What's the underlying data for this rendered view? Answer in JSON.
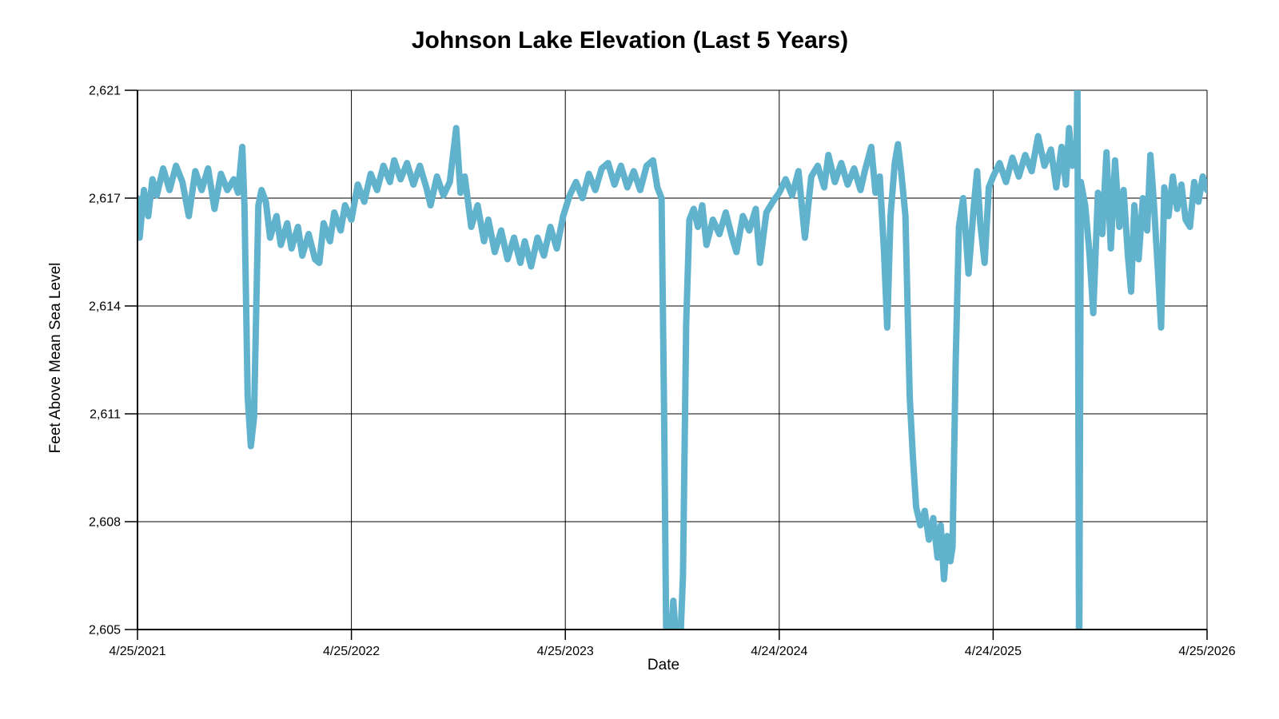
{
  "title": "Johnson Lake Elevation (Last 5 Years)",
  "chart_data": {
    "type": "line",
    "title": "Johnson Lake Elevation (Last 5 Years)",
    "xlabel": "Date",
    "ylabel": "Feet Above Mean Sea Level",
    "grid": true,
    "legend": "none",
    "line_color": "#61B3CD",
    "x_tick_labels": [
      "4/25/2021",
      "4/25/2022",
      "4/25/2023",
      "4/24/2024",
      "4/24/2025",
      "4/25/2026"
    ],
    "y_tick_labels": [
      "2,621",
      "2,617",
      "2,614",
      "2,611",
      "2,608",
      "2,605"
    ],
    "y_tick_values": [
      2621,
      2617,
      2614,
      2611,
      2608,
      2605
    ],
    "x_range_years": [
      0,
      5
    ],
    "points": [
      [
        0.0,
        2617.0
      ],
      [
        0.01,
        2615.9
      ],
      [
        0.03,
        2617.3
      ],
      [
        0.05,
        2616.5
      ],
      [
        0.07,
        2617.7
      ],
      [
        0.09,
        2617.1
      ],
      [
        0.12,
        2618.1
      ],
      [
        0.15,
        2617.3
      ],
      [
        0.18,
        2618.2
      ],
      [
        0.21,
        2617.6
      ],
      [
        0.24,
        2616.5
      ],
      [
        0.27,
        2618.0
      ],
      [
        0.3,
        2617.3
      ],
      [
        0.33,
        2618.1
      ],
      [
        0.36,
        2616.7
      ],
      [
        0.39,
        2617.9
      ],
      [
        0.42,
        2617.3
      ],
      [
        0.45,
        2617.7
      ],
      [
        0.47,
        2617.2
      ],
      [
        0.49,
        2618.9
      ],
      [
        0.5,
        2616.8
      ],
      [
        0.515,
        2611.5
      ],
      [
        0.53,
        2610.1
      ],
      [
        0.545,
        2610.9
      ],
      [
        0.565,
        2616.8
      ],
      [
        0.58,
        2617.3
      ],
      [
        0.6,
        2616.9
      ],
      [
        0.62,
        2615.9
      ],
      [
        0.65,
        2616.5
      ],
      [
        0.67,
        2615.7
      ],
      [
        0.7,
        2616.3
      ],
      [
        0.72,
        2615.6
      ],
      [
        0.75,
        2616.2
      ],
      [
        0.77,
        2615.4
      ],
      [
        0.8,
        2616.0
      ],
      [
        0.83,
        2615.3
      ],
      [
        0.85,
        2615.2
      ],
      [
        0.87,
        2616.3
      ],
      [
        0.9,
        2615.8
      ],
      [
        0.92,
        2616.6
      ],
      [
        0.95,
        2616.1
      ],
      [
        0.97,
        2616.8
      ],
      [
        1.0,
        2616.4
      ],
      [
        1.03,
        2617.5
      ],
      [
        1.06,
        2616.9
      ],
      [
        1.09,
        2617.9
      ],
      [
        1.12,
        2617.3
      ],
      [
        1.15,
        2618.2
      ],
      [
        1.18,
        2617.6
      ],
      [
        1.2,
        2618.4
      ],
      [
        1.23,
        2617.7
      ],
      [
        1.26,
        2618.3
      ],
      [
        1.29,
        2617.5
      ],
      [
        1.32,
        2618.2
      ],
      [
        1.35,
        2617.4
      ],
      [
        1.37,
        2616.8
      ],
      [
        1.4,
        2617.8
      ],
      [
        1.43,
        2617.1
      ],
      [
        1.46,
        2617.6
      ],
      [
        1.49,
        2619.6
      ],
      [
        1.51,
        2617.2
      ],
      [
        1.53,
        2617.8
      ],
      [
        1.56,
        2616.2
      ],
      [
        1.59,
        2616.8
      ],
      [
        1.62,
        2615.8
      ],
      [
        1.64,
        2616.4
      ],
      [
        1.67,
        2615.5
      ],
      [
        1.7,
        2616.1
      ],
      [
        1.73,
        2615.3
      ],
      [
        1.76,
        2615.9
      ],
      [
        1.79,
        2615.2
      ],
      [
        1.81,
        2615.8
      ],
      [
        1.84,
        2615.1
      ],
      [
        1.87,
        2615.9
      ],
      [
        1.9,
        2615.4
      ],
      [
        1.93,
        2616.2
      ],
      [
        1.96,
        2615.6
      ],
      [
        1.99,
        2616.5
      ],
      [
        2.02,
        2617.1
      ],
      [
        2.05,
        2617.6
      ],
      [
        2.08,
        2617.0
      ],
      [
        2.11,
        2617.9
      ],
      [
        2.14,
        2617.3
      ],
      [
        2.17,
        2618.1
      ],
      [
        2.2,
        2618.3
      ],
      [
        2.23,
        2617.5
      ],
      [
        2.26,
        2618.2
      ],
      [
        2.29,
        2617.4
      ],
      [
        2.32,
        2618.0
      ],
      [
        2.35,
        2617.3
      ],
      [
        2.38,
        2618.2
      ],
      [
        2.41,
        2618.4
      ],
      [
        2.43,
        2617.4
      ],
      [
        2.45,
        2617.0
      ],
      [
        2.462,
        2611.0
      ],
      [
        2.472,
        2604.6
      ],
      [
        2.49,
        2604.4
      ],
      [
        2.505,
        2605.8
      ],
      [
        2.52,
        2604.5
      ],
      [
        2.535,
        2604.3
      ],
      [
        2.55,
        2606.5
      ],
      [
        2.565,
        2613.5
      ],
      [
        2.58,
        2616.4
      ],
      [
        2.6,
        2616.7
      ],
      [
        2.62,
        2616.2
      ],
      [
        2.64,
        2616.8
      ],
      [
        2.66,
        2615.7
      ],
      [
        2.69,
        2616.4
      ],
      [
        2.72,
        2616.0
      ],
      [
        2.75,
        2616.6
      ],
      [
        2.78,
        2615.9
      ],
      [
        2.8,
        2615.5
      ],
      [
        2.83,
        2616.5
      ],
      [
        2.86,
        2616.1
      ],
      [
        2.89,
        2616.7
      ],
      [
        2.91,
        2615.2
      ],
      [
        2.94,
        2616.6
      ],
      [
        2.97,
        2616.9
      ],
      [
        3.0,
        2617.2
      ],
      [
        3.03,
        2617.7
      ],
      [
        3.06,
        2617.1
      ],
      [
        3.09,
        2618.0
      ],
      [
        3.12,
        2615.9
      ],
      [
        3.15,
        2617.8
      ],
      [
        3.18,
        2618.2
      ],
      [
        3.21,
        2617.4
      ],
      [
        3.23,
        2618.6
      ],
      [
        3.26,
        2617.6
      ],
      [
        3.29,
        2618.3
      ],
      [
        3.32,
        2617.5
      ],
      [
        3.35,
        2618.1
      ],
      [
        3.38,
        2617.3
      ],
      [
        3.4,
        2618.0
      ],
      [
        3.43,
        2618.9
      ],
      [
        3.45,
        2617.2
      ],
      [
        3.47,
        2617.8
      ],
      [
        3.49,
        2615.5
      ],
      [
        3.505,
        2613.4
      ],
      [
        3.52,
        2616.5
      ],
      [
        3.54,
        2618.3
      ],
      [
        3.555,
        2619.0
      ],
      [
        3.57,
        2618.0
      ],
      [
        3.59,
        2616.5
      ],
      [
        3.61,
        2611.5
      ],
      [
        3.625,
        2609.8
      ],
      [
        3.64,
        2608.4
      ],
      [
        3.66,
        2607.9
      ],
      [
        3.68,
        2608.3
      ],
      [
        3.7,
        2607.5
      ],
      [
        3.72,
        2608.1
      ],
      [
        3.74,
        2607.0
      ],
      [
        3.755,
        2607.9
      ],
      [
        3.77,
        2606.4
      ],
      [
        3.785,
        2607.6
      ],
      [
        3.8,
        2606.9
      ],
      [
        3.81,
        2607.3
      ],
      [
        3.825,
        2612.5
      ],
      [
        3.84,
        2616.2
      ],
      [
        3.86,
        2617.0
      ],
      [
        3.885,
        2614.9
      ],
      [
        3.91,
        2616.8
      ],
      [
        3.925,
        2618.0
      ],
      [
        3.94,
        2616.3
      ],
      [
        3.96,
        2615.2
      ],
      [
        3.98,
        2617.4
      ],
      [
        4.0,
        2617.8
      ],
      [
        4.03,
        2618.3
      ],
      [
        4.06,
        2617.6
      ],
      [
        4.09,
        2618.5
      ],
      [
        4.12,
        2617.8
      ],
      [
        4.15,
        2618.6
      ],
      [
        4.18,
        2618.0
      ],
      [
        4.21,
        2619.3
      ],
      [
        4.24,
        2618.2
      ],
      [
        4.27,
        2618.8
      ],
      [
        4.295,
        2617.4
      ],
      [
        4.32,
        2618.9
      ],
      [
        4.34,
        2617.5
      ],
      [
        4.355,
        2619.6
      ],
      [
        4.37,
        2618.2
      ],
      [
        4.39,
        2618.6
      ],
      [
        4.394,
        2621.8
      ],
      [
        4.402,
        2603.5
      ],
      [
        4.41,
        2617.6
      ],
      [
        4.43,
        2616.8
      ],
      [
        4.45,
        2615.5
      ],
      [
        4.468,
        2613.8
      ],
      [
        4.49,
        2617.2
      ],
      [
        4.51,
        2616.0
      ],
      [
        4.53,
        2618.7
      ],
      [
        4.55,
        2615.6
      ],
      [
        4.57,
        2618.4
      ],
      [
        4.59,
        2616.2
      ],
      [
        4.61,
        2617.3
      ],
      [
        4.63,
        2615.4
      ],
      [
        4.645,
        2614.4
      ],
      [
        4.66,
        2616.8
      ],
      [
        4.68,
        2615.3
      ],
      [
        4.7,
        2617.0
      ],
      [
        4.72,
        2616.1
      ],
      [
        4.735,
        2618.6
      ],
      [
        4.75,
        2617.0
      ],
      [
        4.77,
        2615.0
      ],
      [
        4.785,
        2613.4
      ],
      [
        4.8,
        2617.4
      ],
      [
        4.82,
        2616.5
      ],
      [
        4.84,
        2617.8
      ],
      [
        4.86,
        2616.7
      ],
      [
        4.88,
        2617.5
      ],
      [
        4.9,
        2616.4
      ],
      [
        4.92,
        2616.2
      ],
      [
        4.94,
        2617.6
      ],
      [
        4.96,
        2616.9
      ],
      [
        4.98,
        2617.8
      ],
      [
        5.0,
        2617.3
      ]
    ]
  }
}
